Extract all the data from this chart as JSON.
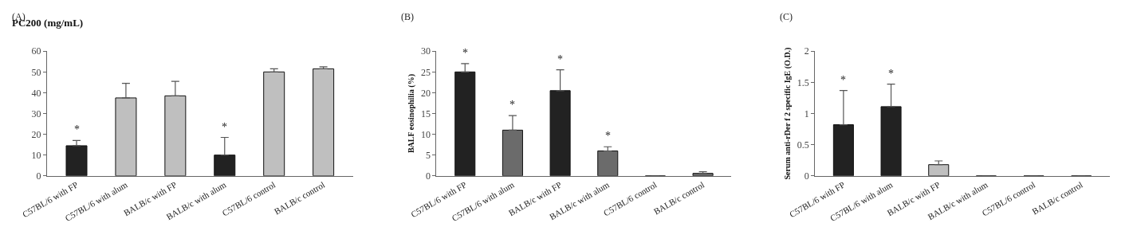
{
  "chart_data": [
    {
      "type": "bar",
      "title": "(A)",
      "ylabel": "PC200 (mg/mL)",
      "categories": [
        "C57BL/6 with FP",
        "C57BL/6 with alum",
        "BALB/c with FP",
        "BALB/c with alum",
        "C57BL/6 control",
        "BALB/c control"
      ],
      "values": [
        14.5,
        37.5,
        38.5,
        10,
        50,
        51.5
      ],
      "errors": [
        [
          14.5,
          17
        ],
        [
          37.5,
          44.5
        ],
        [
          38.5,
          45.5
        ],
        [
          10,
          18.5
        ],
        [
          50,
          51.5
        ],
        [
          51.5,
          52.5
        ]
      ],
      "colors": [
        "#222222",
        "#bfbfbf",
        "#bfbfbf",
        "#222222",
        "#bfbfbf",
        "#bfbfbf"
      ],
      "ylim": [
        0,
        60
      ],
      "yticks": [
        0,
        10,
        20,
        30,
        40,
        50,
        60
      ],
      "annotations": [
        {
          "text": "*",
          "x": "C57BL/6 with FP",
          "y": 17
        },
        {
          "text": "*",
          "x": "BALB/c with alum",
          "y": 18.5
        }
      ]
    },
    {
      "type": "bar",
      "title": "(B)",
      "ylabel": "BALF eosinophilia (%)",
      "categories": [
        "C57BL/6 with FP",
        "C57BL/6 with alum",
        "BALB/c with FP",
        "BALB/c with alum",
        "C57BL/6 control",
        "BALB/c control"
      ],
      "values": [
        25,
        11,
        20.5,
        6,
        0,
        0.6
      ],
      "errors": [
        [
          25,
          27
        ],
        [
          11,
          14.5
        ],
        [
          20.5,
          25.5
        ],
        [
          6,
          7
        ],
        null,
        [
          0.6,
          1
        ]
      ],
      "colors": [
        "#222222",
        "#6b6b6b",
        "#222222",
        "#6b6b6b",
        "#111111",
        "#6b6b6b"
      ],
      "ylim": [
        0,
        30
      ],
      "yticks": [
        0,
        5,
        10,
        15,
        20,
        25,
        30
      ],
      "annotations": [
        {
          "text": "*",
          "x": "C57BL/6 with FP",
          "y": 27
        },
        {
          "text": "*",
          "x": "C57BL/6 with alum",
          "y": 14.5
        },
        {
          "text": "*",
          "x": "BALB/c with FP",
          "y": 25.5
        },
        {
          "text": "*",
          "x": "BALB/c with alum",
          "y": 7
        }
      ]
    },
    {
      "type": "bar",
      "title": "(C)",
      "ylabel": "Serum anti-rDer f 2 specific IgE (O.D.)",
      "categories": [
        "C57BL/6 with FP",
        "C57BL/6 with alum",
        "BALB/c with FP",
        "BALB/c with alum",
        "C57BL/6 control",
        "BALB/c control"
      ],
      "values": [
        0.82,
        1.11,
        0.18,
        0,
        0,
        0
      ],
      "errors": [
        [
          0.82,
          1.37
        ],
        [
          1.11,
          1.47
        ],
        [
          0.18,
          0.24
        ],
        null,
        null,
        null
      ],
      "colors": [
        "#222222",
        "#222222",
        "#bfbfbf",
        "#111111",
        "#111111",
        "#111111"
      ],
      "ylim": [
        0,
        2
      ],
      "yticks": [
        0,
        0.5,
        1,
        1.5,
        2
      ],
      "annotations": [
        {
          "text": "*",
          "x": "C57BL/6 with FP",
          "y": 1.37
        },
        {
          "text": "*",
          "x": "C57BL/6 with alum",
          "y": 1.47
        }
      ]
    }
  ]
}
